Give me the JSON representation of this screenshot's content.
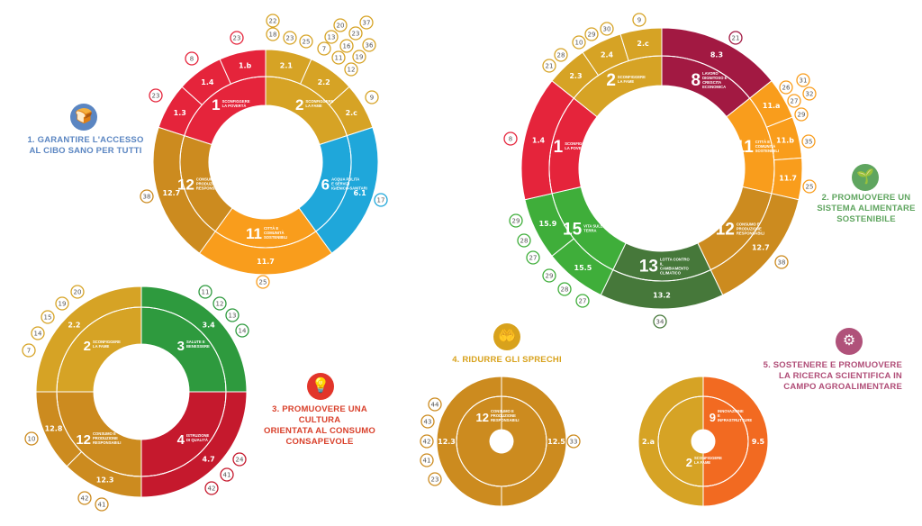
{
  "objectives": [
    {
      "title_lines": [
        "1. GARANTIRE L'ACCESSO",
        "AL CIBO SANO PER TUTTI"
      ],
      "color": "#5b86c2",
      "icon": "bread-basket-icon"
    },
    {
      "title_lines": [
        "2. PROMUOVERE UN",
        "SISTEMA ALIMENTARE",
        "SOSTENIBILE"
      ],
      "color": "#5fa55f",
      "icon": "sprout-icon"
    },
    {
      "title_lines": [
        "3. PROMUOVERE UNA CULTURA",
        "ORIENTATA AL CONSUMO",
        "CONSAPEVOLE"
      ],
      "color": "#d9402b",
      "icon": "lightbulb-icon"
    },
    {
      "title_lines": [
        "4. RIDURRE GLI SPRECHI"
      ],
      "color": "#d8a21c",
      "icon": "hands-food-icon"
    },
    {
      "title_lines": [
        "5. SOSTENERE E PROMUOVERE",
        "LA RICERCA SCIENTIFICA IN",
        "CAMPO AGROALIMENTARE"
      ],
      "color": "#b04d77",
      "icon": "head-gears-icon"
    }
  ],
  "charts": [
    {
      "goals": [
        {
          "num": "1",
          "label": "SCONFIGGERE LA POVERTÀ",
          "color": "#e5243b",
          "targets": [
            "1.3",
            "1.4",
            "1.b"
          ]
        },
        {
          "num": "2",
          "label": "SCONFIGGERE LA FAME",
          "color": "#d6a325",
          "targets": [
            "2.1",
            "2.2",
            "2.c"
          ]
        },
        {
          "num": "6",
          "label": "ACQUA PULITA E SERVIZI IGIENICO-SANITARI",
          "color": "#1fa7da",
          "targets": [
            "6.1"
          ]
        },
        {
          "num": "11",
          "label": "CITTÀ E COMUNITÀ SOSTENIBILI",
          "color": "#f99d1c",
          "targets": [
            "11.7"
          ]
        },
        {
          "num": "12",
          "label": "CONSUMO E PRODUZIONE RESPONSABILI",
          "color": "#cc8b1f",
          "targets": [
            "12.7"
          ]
        }
      ],
      "refs": [
        {
          "n": "23",
          "color": "#e5243b"
        },
        {
          "n": "8",
          "color": "#e5243b"
        },
        {
          "n": "23",
          "color": "#e5243b"
        },
        {
          "n": "22",
          "color": "#d6a325"
        },
        {
          "n": "18",
          "color": "#d6a325"
        },
        {
          "n": "23",
          "color": "#d6a325"
        },
        {
          "n": "25",
          "color": "#d6a325"
        },
        {
          "n": "7",
          "color": "#d6a325"
        },
        {
          "n": "13",
          "color": "#d6a325"
        },
        {
          "n": "20",
          "color": "#d6a325"
        },
        {
          "n": "11",
          "color": "#d6a325"
        },
        {
          "n": "16",
          "color": "#d6a325"
        },
        {
          "n": "23",
          "color": "#d6a325"
        },
        {
          "n": "37",
          "color": "#d6a325"
        },
        {
          "n": "12",
          "color": "#d6a325"
        },
        {
          "n": "19",
          "color": "#d6a325"
        },
        {
          "n": "36",
          "color": "#d6a325"
        },
        {
          "n": "9",
          "color": "#d6a325"
        },
        {
          "n": "38",
          "color": "#cc8b1f"
        },
        {
          "n": "17",
          "color": "#1fa7da"
        },
        {
          "n": "25",
          "color": "#f99d1c"
        }
      ]
    },
    {
      "goals": [
        {
          "num": "8",
          "label": "LAVORO DIGNITOSO E CRESCITA ECONOMICA",
          "color": "#a21942",
          "targets": [
            "8.3"
          ]
        },
        {
          "num": "11",
          "label": "CITTÀ E COMUNITÀ SOSTENIBILI",
          "color": "#f99d1c",
          "targets": [
            "11.a",
            "11.b",
            "11.7"
          ]
        },
        {
          "num": "12",
          "label": "CONSUMO E PRODUZIONE RESPONSABILI",
          "color": "#cc8b1f",
          "targets": [
            "12.7"
          ]
        },
        {
          "num": "13",
          "label": "LOTTA CONTRO IL CAMBIAMENTO CLIMATICO",
          "color": "#46783a",
          "targets": [
            "13.2"
          ]
        },
        {
          "num": "15",
          "label": "VITA SULLA TERRA",
          "color": "#3fae3a",
          "targets": [
            "15.5",
            "15.9"
          ]
        },
        {
          "num": "1",
          "label": "SCONFIGGERE LA POVERTÀ",
          "color": "#e5243b",
          "targets": [
            "1.4"
          ]
        },
        {
          "num": "2",
          "label": "SCONFIGGERE LA FAME",
          "color": "#d6a325",
          "targets": [
            "2.3",
            "2.4",
            "2.c"
          ]
        }
      ],
      "refs": [
        {
          "n": "9",
          "color": "#d6a325"
        },
        {
          "n": "30",
          "color": "#d6a325"
        },
        {
          "n": "29",
          "color": "#d6a325"
        },
        {
          "n": "10",
          "color": "#d6a325"
        },
        {
          "n": "28",
          "color": "#d6a325"
        },
        {
          "n": "21",
          "color": "#d6a325"
        },
        {
          "n": "21",
          "color": "#a21942"
        },
        {
          "n": "8",
          "color": "#e5243b"
        },
        {
          "n": "31",
          "color": "#f99d1c"
        },
        {
          "n": "26",
          "color": "#f99d1c"
        },
        {
          "n": "32",
          "color": "#f99d1c"
        },
        {
          "n": "27",
          "color": "#f99d1c"
        },
        {
          "n": "29",
          "color": "#f99d1c"
        },
        {
          "n": "35",
          "color": "#f99d1c"
        },
        {
          "n": "25",
          "color": "#f99d1c"
        },
        {
          "n": "38",
          "color": "#cc8b1f"
        },
        {
          "n": "34",
          "color": "#46783a"
        },
        {
          "n": "29",
          "color": "#3fae3a"
        },
        {
          "n": "28",
          "color": "#3fae3a"
        },
        {
          "n": "27",
          "color": "#3fae3a"
        },
        {
          "n": "29",
          "color": "#3fae3a"
        },
        {
          "n": "28",
          "color": "#3fae3a"
        },
        {
          "n": "27",
          "color": "#3fae3a"
        }
      ]
    },
    {
      "goals": [
        {
          "num": "3",
          "label": "SALUTE E BENESSERE",
          "color": "#2e9a3e",
          "targets": [
            "3.4"
          ]
        },
        {
          "num": "4",
          "label": "ISTRUZIONE DI QUALITÀ",
          "color": "#c5192d",
          "targets": [
            "4.7"
          ]
        },
        {
          "num": "12",
          "label": "CONSUMO E PRODUZIONE RESPONSABILI",
          "color": "#cc8b1f",
          "targets": [
            "12.3",
            "12.8"
          ]
        },
        {
          "num": "2",
          "label": "SCONFIGGERE LA FAME",
          "color": "#d6a325",
          "targets": [
            "2.2"
          ]
        }
      ],
      "refs": [
        {
          "n": "20",
          "color": "#d6a325"
        },
        {
          "n": "19",
          "color": "#d6a325"
        },
        {
          "n": "15",
          "color": "#d6a325"
        },
        {
          "n": "14",
          "color": "#d6a325"
        },
        {
          "n": "7",
          "color": "#d6a325"
        },
        {
          "n": "11",
          "color": "#2e9a3e"
        },
        {
          "n": "12",
          "color": "#2e9a3e"
        },
        {
          "n": "13",
          "color": "#2e9a3e"
        },
        {
          "n": "14",
          "color": "#2e9a3e"
        },
        {
          "n": "10",
          "color": "#cc8b1f"
        },
        {
          "n": "42",
          "color": "#cc8b1f"
        },
        {
          "n": "41",
          "color": "#cc8b1f"
        },
        {
          "n": "24",
          "color": "#c5192d"
        },
        {
          "n": "41",
          "color": "#c5192d"
        },
        {
          "n": "42",
          "color": "#c5192d"
        }
      ]
    },
    {
      "goals": [
        {
          "num": "12",
          "label": "CONSUMO E PRODUZIONE RESPONSABILI",
          "color": "#cc8b1f",
          "targets": [
            "12.5",
            "12.3"
          ]
        }
      ],
      "refs": [
        {
          "n": "44",
          "color": "#cc8b1f"
        },
        {
          "n": "43",
          "color": "#cc8b1f"
        },
        {
          "n": "42",
          "color": "#cc8b1f"
        },
        {
          "n": "41",
          "color": "#cc8b1f"
        },
        {
          "n": "23",
          "color": "#cc8b1f"
        },
        {
          "n": "33",
          "color": "#cc8b1f"
        }
      ]
    },
    {
      "goals": [
        {
          "num": "9",
          "label": "INNOVAZIONE E INFRASTRUTTURE",
          "color": "#f26a21",
          "targets": [
            "9.5"
          ]
        },
        {
          "num": "2",
          "label": "SCONFIGGERE LA FAME",
          "color": "#d6a325",
          "targets": [
            "2.a"
          ]
        }
      ],
      "refs": []
    }
  ]
}
